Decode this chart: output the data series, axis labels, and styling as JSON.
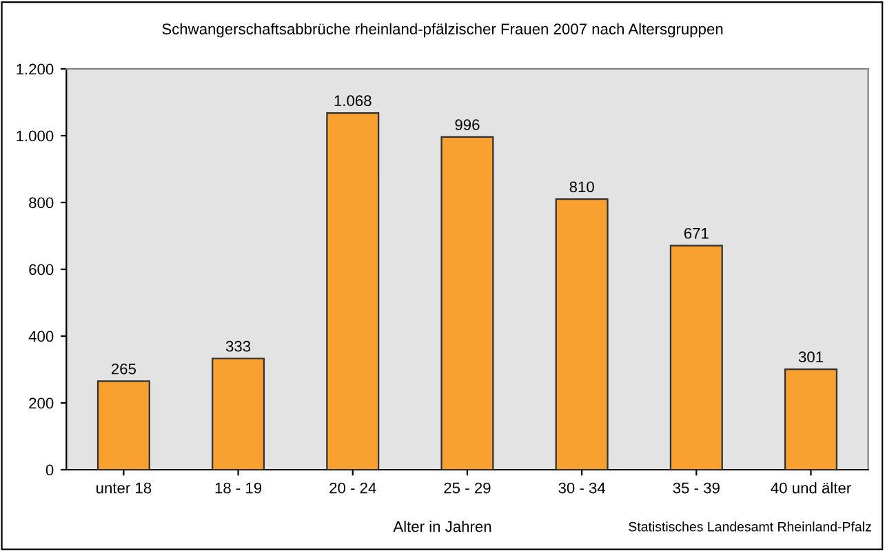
{
  "chart_data": {
    "type": "bar",
    "title": "Schwangerschaftsabbrüche rheinland-pfälzischer Frauen 2007 nach Altersgruppen",
    "xlabel": "Alter in Jahren",
    "categories": [
      "unter 18",
      "18 - 19",
      "20 - 24",
      "25 - 29",
      "30 - 34",
      "35 - 39",
      "40 und älter"
    ],
    "values": [
      265,
      333,
      1068,
      996,
      810,
      671,
      301
    ],
    "value_labels": [
      "265",
      "333",
      "1.068",
      "996",
      "810",
      "671",
      "301"
    ],
    "color": "#f8a030",
    "ylim": [
      0,
      1200
    ],
    "yticks": [
      0,
      200,
      400,
      600,
      800,
      {
        "value": 1000,
        "label": "1.000"
      },
      {
        "value": 1200,
        "label": "1.200"
      }
    ],
    "grid": false,
    "annotations": [
      "Statistisches Landesamt Rheinland-Pfalz"
    ]
  }
}
